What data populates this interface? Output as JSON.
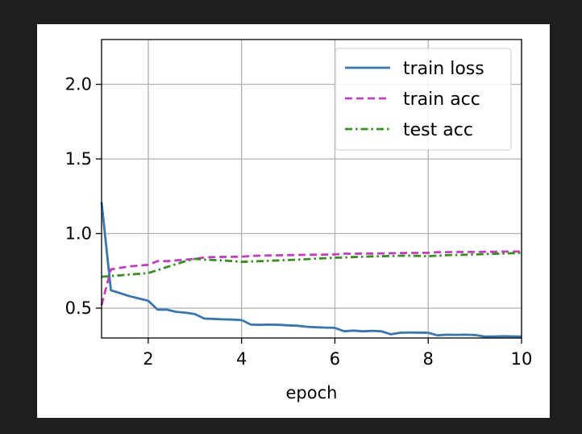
{
  "chart_data": {
    "type": "line",
    "xlabel": "epoch",
    "ylabel": "",
    "xlim": [
      1,
      10
    ],
    "ylim": [
      0.3,
      2.3
    ],
    "grid": true,
    "legend_position": "top-right",
    "x_ticks": [
      2,
      4,
      6,
      8,
      10
    ],
    "y_ticks": [
      0.5,
      1.0,
      1.5,
      2.0
    ],
    "x_tick_labels": [
      "2",
      "4",
      "6",
      "8",
      "10"
    ],
    "y_tick_labels": [
      "0.5",
      "1.0",
      "1.5",
      "2.0"
    ],
    "series": [
      {
        "name": "train loss",
        "color": "#3b75af",
        "dash": "solid",
        "x": [
          1.0,
          1.2,
          1.4,
          1.6,
          1.8,
          2.0,
          2.2,
          2.4,
          2.6,
          2.8,
          3.0,
          3.2,
          3.4,
          3.6,
          3.8,
          4.0,
          4.2,
          4.4,
          4.6,
          4.8,
          5.0,
          5.2,
          5.4,
          5.6,
          5.8,
          6.0,
          6.2,
          6.4,
          6.6,
          6.8,
          7.0,
          7.2,
          7.4,
          7.6,
          7.8,
          8.0,
          8.2,
          8.4,
          8.6,
          8.8,
          9.0,
          9.2,
          9.4,
          9.6,
          9.8,
          10.0
        ],
        "y": [
          1.21,
          0.62,
          0.6,
          0.58,
          0.565,
          0.55,
          0.49,
          0.49,
          0.475,
          0.47,
          0.46,
          0.43,
          0.428,
          0.425,
          0.423,
          0.42,
          0.39,
          0.388,
          0.39,
          0.388,
          0.385,
          0.382,
          0.375,
          0.372,
          0.37,
          0.368,
          0.345,
          0.35,
          0.345,
          0.348,
          0.345,
          0.325,
          0.335,
          0.337,
          0.336,
          0.335,
          0.318,
          0.322,
          0.321,
          0.322,
          0.32,
          0.31,
          0.31,
          0.312,
          0.311,
          0.31
        ]
      },
      {
        "name": "train acc",
        "color": "#bf40bf",
        "dash": "dashed",
        "x": [
          1.0,
          1.2,
          1.4,
          1.6,
          1.8,
          2.0,
          2.2,
          2.4,
          2.6,
          2.8,
          3.0,
          3.2,
          3.4,
          3.6,
          3.8,
          4.0,
          4.2,
          4.4,
          4.6,
          4.8,
          5.0,
          5.2,
          5.4,
          5.6,
          5.8,
          6.0,
          6.2,
          6.4,
          6.6,
          6.8,
          7.0,
          7.2,
          7.4,
          7.6,
          7.8,
          8.0,
          8.2,
          8.4,
          8.6,
          8.8,
          9.0,
          9.2,
          9.4,
          9.6,
          9.8,
          10.0
        ],
        "y": [
          0.52,
          0.76,
          0.77,
          0.78,
          0.785,
          0.79,
          0.815,
          0.815,
          0.82,
          0.825,
          0.83,
          0.84,
          0.842,
          0.843,
          0.844,
          0.845,
          0.85,
          0.852,
          0.853,
          0.854,
          0.855,
          0.856,
          0.858,
          0.858,
          0.859,
          0.86,
          0.865,
          0.865,
          0.866,
          0.866,
          0.867,
          0.868,
          0.869,
          0.87,
          0.87,
          0.871,
          0.875,
          0.875,
          0.876,
          0.876,
          0.877,
          0.878,
          0.878,
          0.879,
          0.879,
          0.88
        ]
      },
      {
        "name": "test acc",
        "color": "#3d8a26",
        "dash": "dashdot",
        "x": [
          1.0,
          2.0,
          2.4,
          2.8,
          3.0,
          3.2,
          3.6,
          4.0,
          4.4,
          4.8,
          5.2,
          5.6,
          6.0,
          6.4,
          6.8,
          7.2,
          7.6,
          8.0,
          8.4,
          8.8,
          9.2,
          9.6,
          10.0
        ],
        "y": [
          0.71,
          0.735,
          0.775,
          0.815,
          0.83,
          0.825,
          0.82,
          0.81,
          0.815,
          0.82,
          0.825,
          0.832,
          0.838,
          0.842,
          0.847,
          0.85,
          0.852,
          0.848,
          0.855,
          0.858,
          0.862,
          0.866,
          0.87
        ]
      }
    ]
  }
}
